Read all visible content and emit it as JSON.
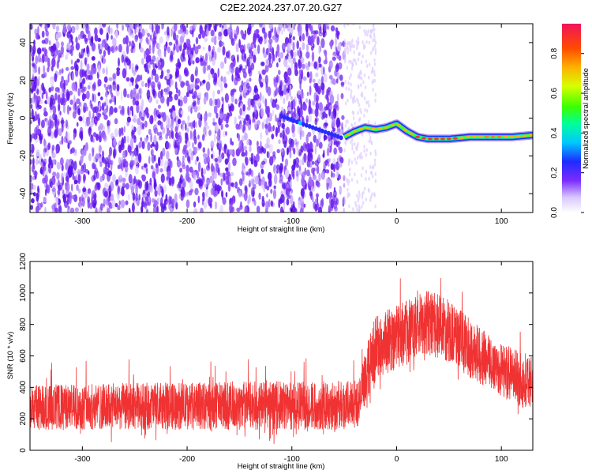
{
  "title": "C2E2.2024.237.07.20.G27",
  "colors": {
    "snr_line": "#f03232",
    "frame": "#000000"
  },
  "chart_data": [
    {
      "type": "heatmap",
      "xlabel": "Height of straight line (km)",
      "ylabel": "Frequency (Hz)",
      "xlim": [
        -350,
        130
      ],
      "ylim": [
        -50,
        50
      ],
      "xticks": [
        -300,
        -200,
        -100,
        0,
        100
      ],
      "yticks": [
        -40,
        -20,
        0,
        20,
        40
      ],
      "noise_region_x": [
        -350,
        -50
      ],
      "ridge": {
        "name": "Doppler track",
        "x": [
          -50,
          -40,
          -30,
          -20,
          -10,
          0,
          10,
          20,
          30,
          50,
          70,
          90,
          110,
          130
        ],
        "y": [
          -10,
          -7,
          -5,
          -6,
          -5,
          -3,
          -7,
          -10,
          -11,
          -11,
          -10,
          -10,
          -10,
          -9
        ]
      },
      "colorbar": {
        "label": "Normalized spectral amplitude",
        "range": [
          0.0,
          0.95
        ],
        "ticks": [
          "0.0",
          "0.2",
          "0.4",
          "0.6",
          "0.8"
        ]
      }
    },
    {
      "type": "line",
      "xlabel": "Height of straight line (km)",
      "ylabel": "SNR (10 * v/v)",
      "xlim": [
        -350,
        130
      ],
      "ylim": [
        0,
        1200
      ],
      "xticks": [
        -300,
        -200,
        -100,
        0,
        100
      ],
      "yticks": [
        0,
        200,
        400,
        600,
        800,
        1000,
        1200
      ],
      "envelope": {
        "x": [
          -350,
          -300,
          -250,
          -200,
          -150,
          -100,
          -50,
          -35,
          -30,
          -20,
          0,
          20,
          30,
          50,
          70,
          90,
          110,
          130
        ],
        "low": [
          130,
          130,
          130,
          130,
          130,
          130,
          130,
          150,
          300,
          440,
          520,
          570,
          600,
          560,
          460,
          380,
          300,
          240
        ],
        "high": [
          420,
          420,
          430,
          430,
          440,
          440,
          440,
          470,
          620,
          860,
          930,
          980,
          1020,
          960,
          840,
          730,
          650,
          600
        ]
      },
      "series_name": "SNR"
    }
  ]
}
